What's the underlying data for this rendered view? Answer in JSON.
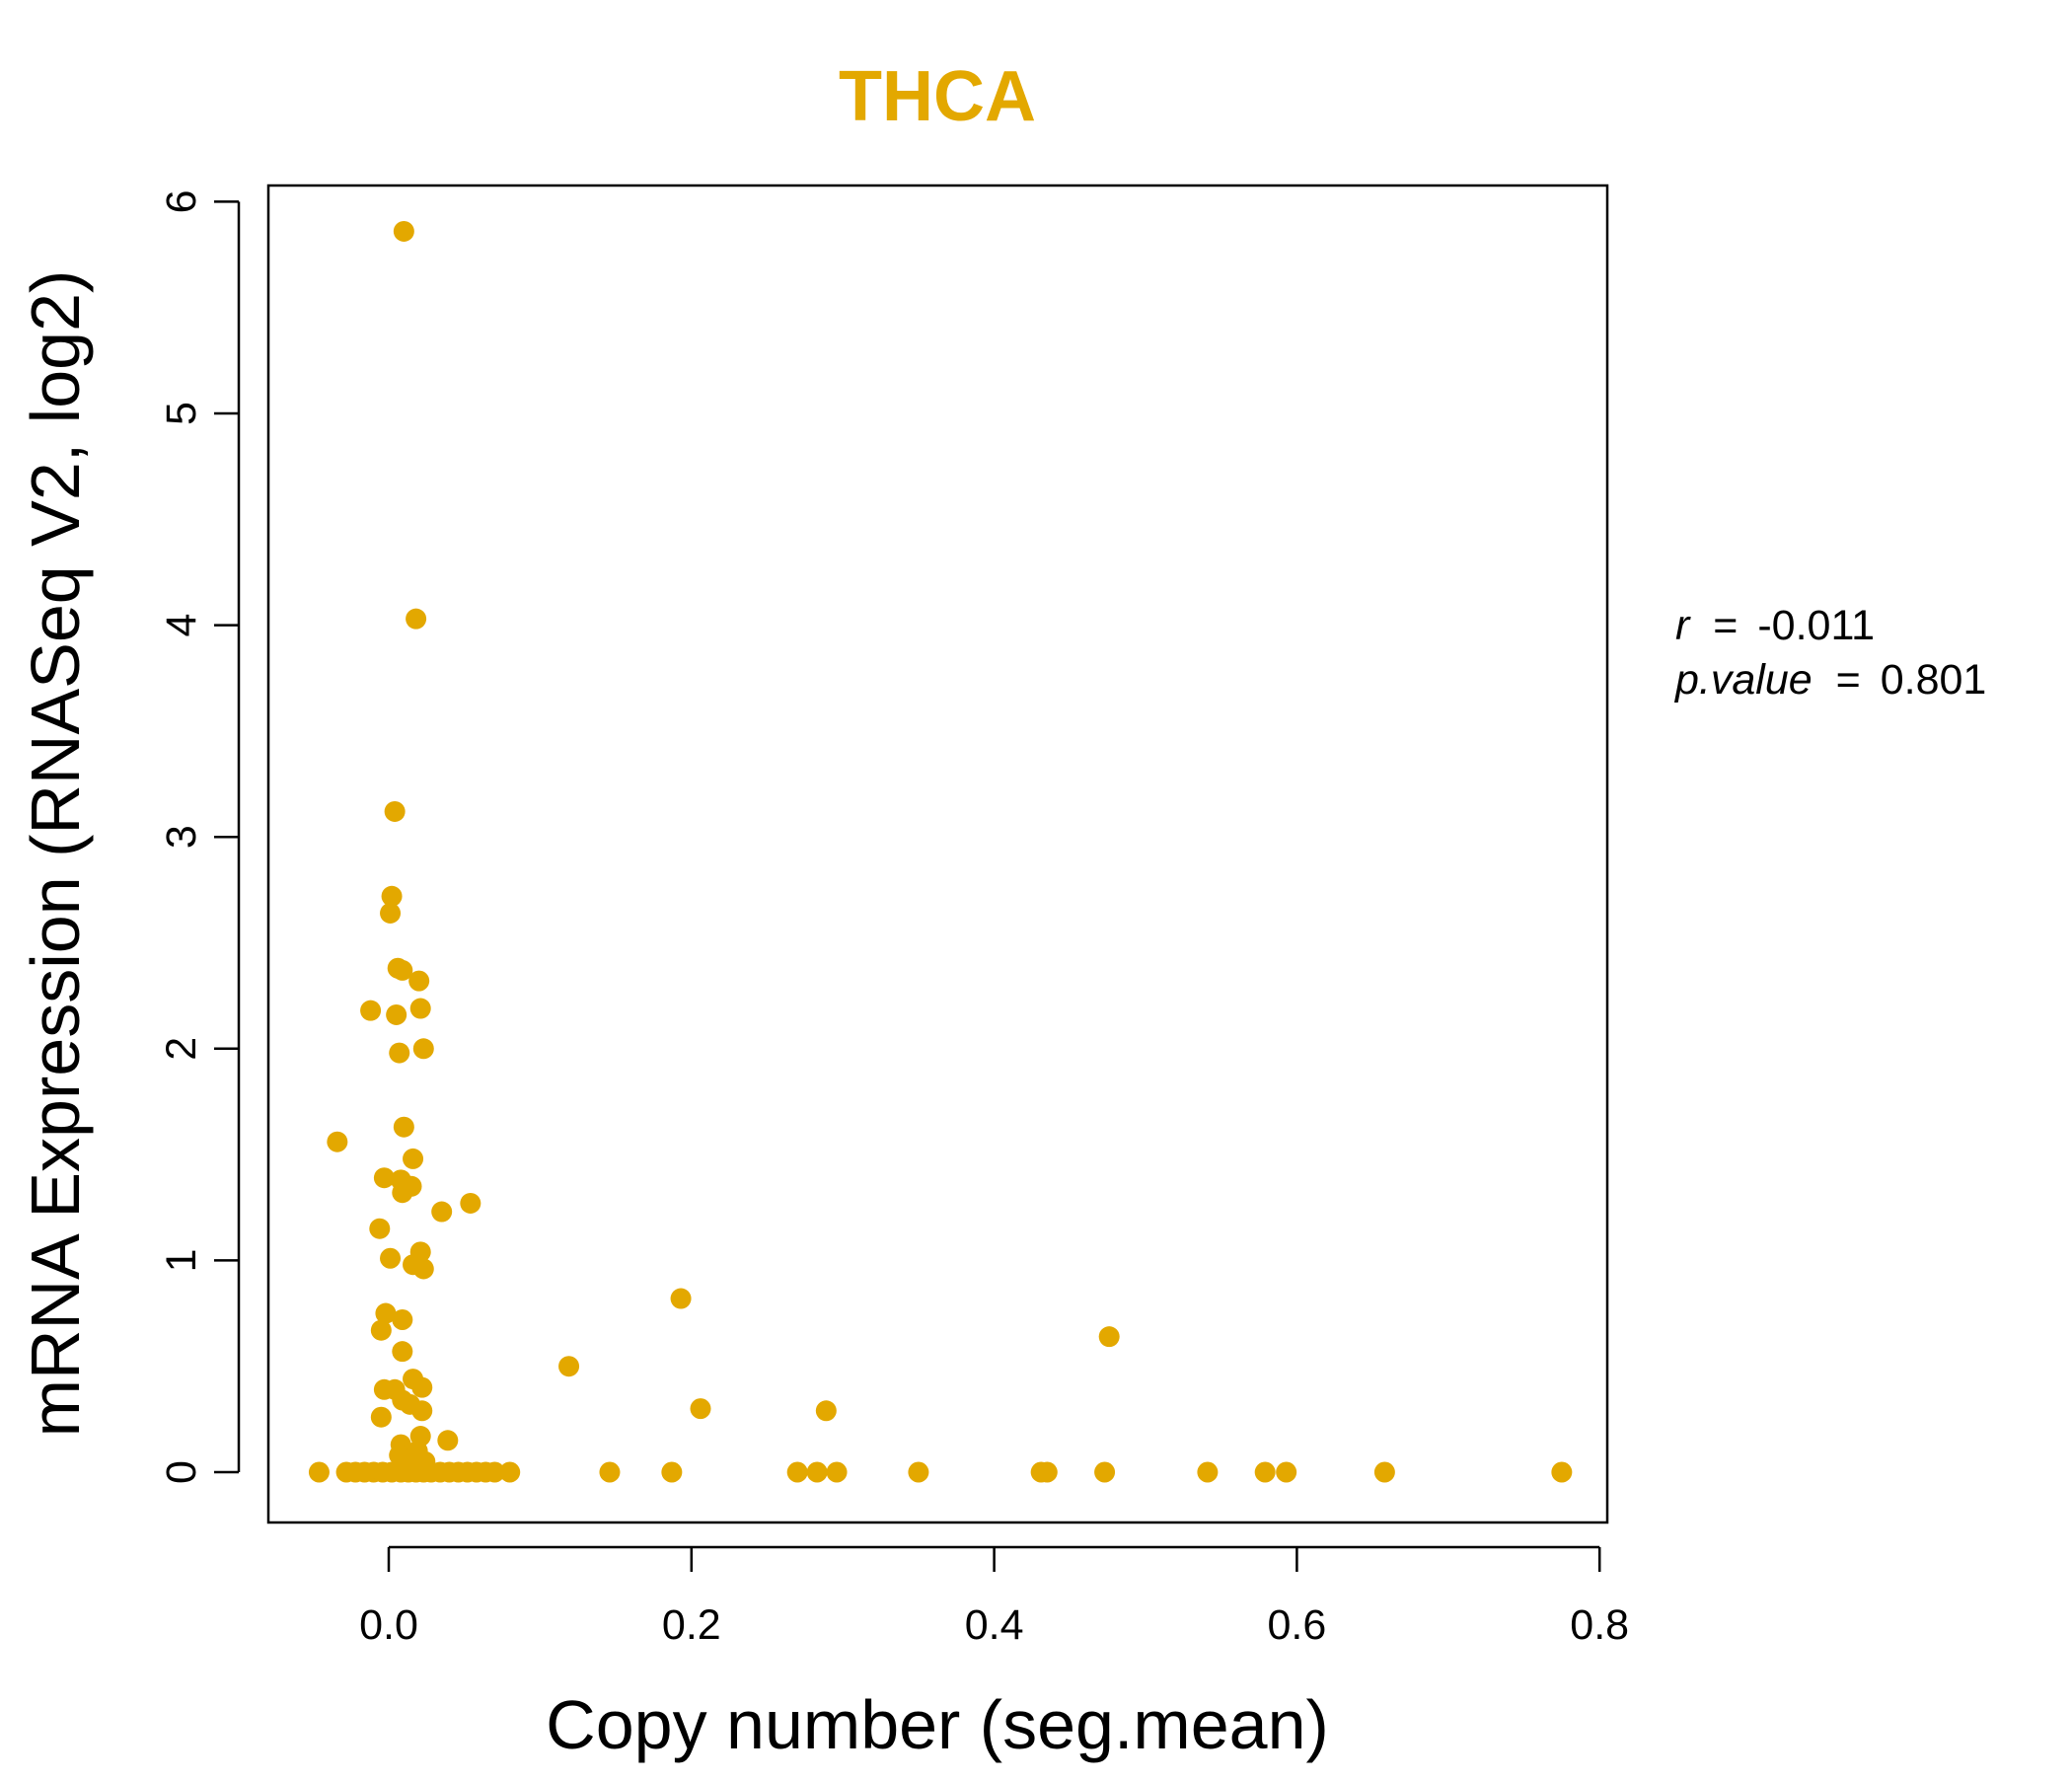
{
  "chart_data": {
    "type": "scatter",
    "title": "THCA",
    "xlabel": "Copy number (seg.mean)",
    "ylabel": "mRNA Expression (RNASeq V2, log2)",
    "xlim": [
      -0.1,
      0.8
    ],
    "ylim": [
      -0.2,
      6.1
    ],
    "xticks": [
      0.0,
      0.2,
      0.4,
      0.6,
      0.8
    ],
    "xtick_labels": [
      "0.0",
      "0.2",
      "0.4",
      "0.6",
      "0.8"
    ],
    "yticks": [
      0,
      1,
      2,
      3,
      4,
      5,
      6
    ],
    "ytick_labels": [
      "0",
      "1",
      "2",
      "3",
      "4",
      "5",
      "6"
    ],
    "grid": false,
    "point_color": "#E3A800",
    "title_color": "#E3A800",
    "annotation": {
      "r_label": "r",
      "r_value": "-0.011",
      "p_label": "p.value",
      "p_value": "0.801",
      "equals": "="
    },
    "points": [
      {
        "x": 0.01,
        "y": 5.86
      },
      {
        "x": 0.018,
        "y": 4.03
      },
      {
        "x": 0.004,
        "y": 3.12
      },
      {
        "x": 0.002,
        "y": 2.72
      },
      {
        "x": 0.001,
        "y": 2.64
      },
      {
        "x": 0.006,
        "y": 2.38
      },
      {
        "x": 0.009,
        "y": 2.37
      },
      {
        "x": 0.02,
        "y": 2.32
      },
      {
        "x": -0.012,
        "y": 2.18
      },
      {
        "x": 0.005,
        "y": 2.16
      },
      {
        "x": 0.021,
        "y": 2.19
      },
      {
        "x": 0.007,
        "y": 1.98
      },
      {
        "x": 0.023,
        "y": 2.0
      },
      {
        "x": 0.01,
        "y": 1.63
      },
      {
        "x": -0.034,
        "y": 1.56
      },
      {
        "x": 0.016,
        "y": 1.48
      },
      {
        "x": -0.003,
        "y": 1.39
      },
      {
        "x": 0.008,
        "y": 1.38
      },
      {
        "x": 0.015,
        "y": 1.35
      },
      {
        "x": 0.009,
        "y": 1.32
      },
      {
        "x": 0.054,
        "y": 1.27
      },
      {
        "x": 0.035,
        "y": 1.23
      },
      {
        "x": -0.006,
        "y": 1.15
      },
      {
        "x": 0.021,
        "y": 1.04
      },
      {
        "x": 0.001,
        "y": 1.01
      },
      {
        "x": 0.016,
        "y": 0.98
      },
      {
        "x": 0.023,
        "y": 0.96
      },
      {
        "x": 0.193,
        "y": 0.82
      },
      {
        "x": -0.002,
        "y": 0.75
      },
      {
        "x": 0.009,
        "y": 0.72
      },
      {
        "x": -0.005,
        "y": 0.67
      },
      {
        "x": 0.476,
        "y": 0.64
      },
      {
        "x": 0.009,
        "y": 0.57
      },
      {
        "x": 0.119,
        "y": 0.5
      },
      {
        "x": 0.016,
        "y": 0.44
      },
      {
        "x": -0.003,
        "y": 0.39
      },
      {
        "x": 0.004,
        "y": 0.39
      },
      {
        "x": 0.022,
        "y": 0.4
      },
      {
        "x": 0.009,
        "y": 0.34
      },
      {
        "x": 0.014,
        "y": 0.32
      },
      {
        "x": 0.206,
        "y": 0.3
      },
      {
        "x": 0.289,
        "y": 0.29
      },
      {
        "x": 0.022,
        "y": 0.29
      },
      {
        "x": -0.005,
        "y": 0.26
      },
      {
        "x": 0.021,
        "y": 0.17
      },
      {
        "x": 0.039,
        "y": 0.15
      },
      {
        "x": 0.008,
        "y": 0.13
      },
      {
        "x": 0.019,
        "y": 0.1
      },
      {
        "x": 0.007,
        "y": 0.08
      },
      {
        "x": 0.013,
        "y": 0.06
      },
      {
        "x": 0.024,
        "y": 0.05
      },
      {
        "x": -0.046,
        "y": 0.0
      },
      {
        "x": -0.028,
        "y": 0.0
      },
      {
        "x": -0.022,
        "y": 0.0
      },
      {
        "x": -0.016,
        "y": 0.0
      },
      {
        "x": -0.01,
        "y": 0.0
      },
      {
        "x": -0.004,
        "y": 0.0
      },
      {
        "x": 0.002,
        "y": 0.0
      },
      {
        "x": 0.008,
        "y": 0.0
      },
      {
        "x": 0.013,
        "y": 0.0
      },
      {
        "x": 0.018,
        "y": 0.0
      },
      {
        "x": 0.023,
        "y": 0.0
      },
      {
        "x": 0.028,
        "y": 0.0
      },
      {
        "x": 0.034,
        "y": 0.0
      },
      {
        "x": 0.04,
        "y": 0.0
      },
      {
        "x": 0.046,
        "y": 0.0
      },
      {
        "x": 0.052,
        "y": 0.0
      },
      {
        "x": 0.058,
        "y": 0.0
      },
      {
        "x": 0.064,
        "y": 0.0
      },
      {
        "x": 0.07,
        "y": 0.0
      },
      {
        "x": 0.08,
        "y": 0.0
      },
      {
        "x": 0.146,
        "y": 0.0
      },
      {
        "x": 0.187,
        "y": 0.0
      },
      {
        "x": 0.27,
        "y": 0.0
      },
      {
        "x": 0.283,
        "y": 0.0
      },
      {
        "x": 0.296,
        "y": 0.0
      },
      {
        "x": 0.35,
        "y": 0.0
      },
      {
        "x": 0.431,
        "y": 0.0
      },
      {
        "x": 0.435,
        "y": 0.0
      },
      {
        "x": 0.473,
        "y": 0.0
      },
      {
        "x": 0.541,
        "y": 0.0
      },
      {
        "x": 0.579,
        "y": 0.0
      },
      {
        "x": 0.593,
        "y": 0.0
      },
      {
        "x": 0.658,
        "y": 0.0
      },
      {
        "x": 0.775,
        "y": 0.0
      }
    ]
  }
}
